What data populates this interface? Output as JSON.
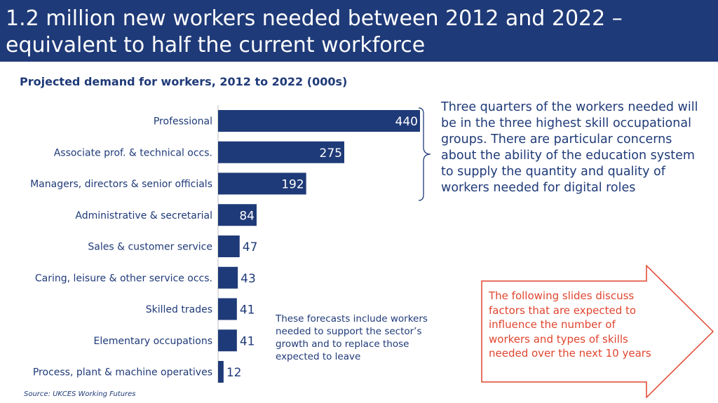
{
  "header": {
    "title": "1.2 million new workers needed between 2012 and 2022 – equivalent to half the current workforce"
  },
  "chart_title": "Projected demand for workers, 2012 to 2022 (000s)",
  "chart_data": {
    "type": "bar",
    "orientation": "horizontal",
    "title": "Projected demand for workers, 2012 to 2022 (000s)",
    "categories": [
      "Professional",
      "Associate prof. & technical occs.",
      "Managers, directors & senior officials",
      "Administrative & secretarial",
      "Sales & customer service",
      "Caring, leisure & other service occs.",
      "Skilled trades",
      "Elementary occupations",
      "Process, plant & machine operatives"
    ],
    "values": [
      440,
      275,
      192,
      84,
      47,
      43,
      41,
      41,
      12
    ],
    "xlim": [
      0,
      440
    ],
    "grid": false,
    "data_labels": true,
    "colors": {
      "bar": "#1f3a78",
      "label_inside": "#ffffff",
      "label_outside": "#1f3a78"
    }
  },
  "callout": {
    "text": "Three quarters of the workers needed will be in the three highest skill occupational groups. There are particular concerns about the ability of the education system to supply the quantity and quality of workers needed for digital roles"
  },
  "note": {
    "text": "These forecasts include workers needed to support the sector’s growth and to replace those expected to leave"
  },
  "arrow_box": {
    "text": "The following slides discuss factors that are expected to influence the number of workers and types of skills needed over the next 10 years"
  },
  "source": "Source: UKCES Working Futures",
  "colors": {
    "header_bg": "#1f3a78",
    "primary": "#1f3a78",
    "accent": "#e0452f"
  }
}
